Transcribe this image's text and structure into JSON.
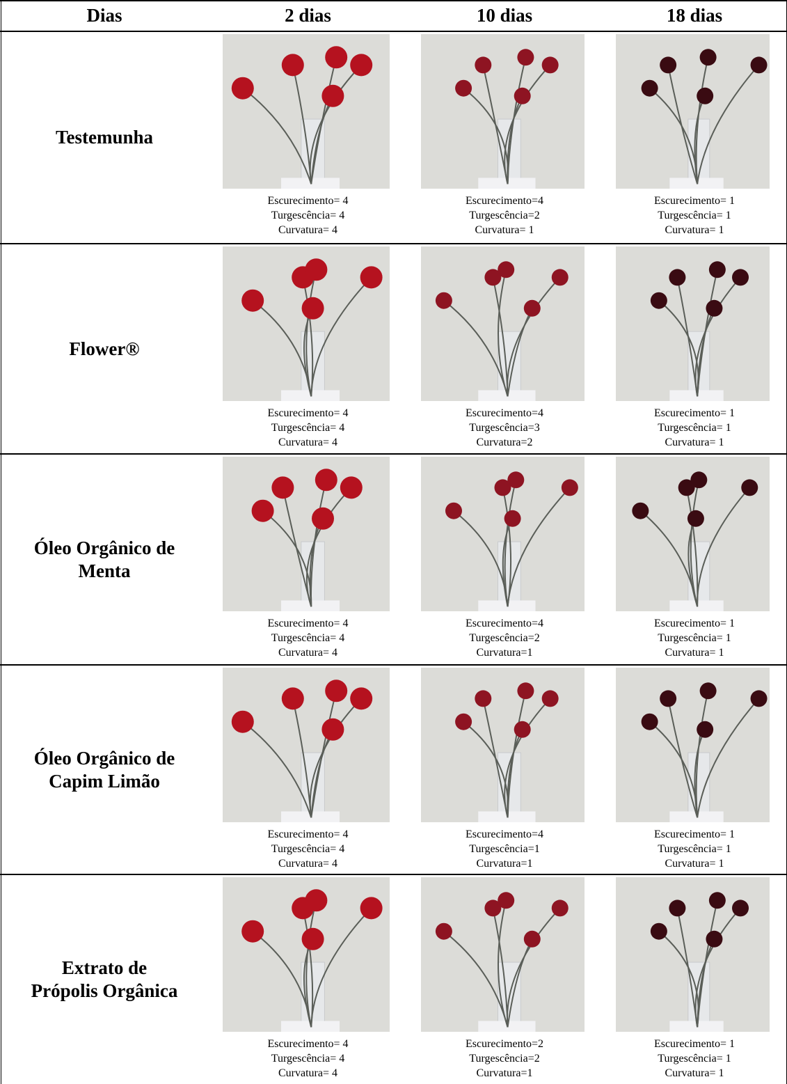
{
  "table": {
    "header": [
      "Dias",
      "2 dias",
      "10 dias",
      "18 dias"
    ],
    "rows": [
      {
        "label": [
          "Testemunha"
        ],
        "cells": [
          [
            "Escurecimento= 4",
            "Turgescência= 4",
            "Curvatura= 4"
          ],
          [
            "Escurecimento=4",
            "Turgescência=2",
            "Curvatura= 1"
          ],
          [
            "Escurecimento= 1",
            "Turgescência= 1",
            "Curvatura= 1"
          ]
        ]
      },
      {
        "label": [
          "Flower®"
        ],
        "cells": [
          [
            "Escurecimento= 4",
            "Turgescência= 4",
            "Curvatura= 4"
          ],
          [
            "Escurecimento=4",
            "Turgescência=3",
            "Curvatura=2"
          ],
          [
            "Escurecimento= 1",
            "Turgescência= 1",
            "Curvatura= 1"
          ]
        ]
      },
      {
        "label": [
          "Óleo Orgânico de",
          "Menta"
        ],
        "cells": [
          [
            "Escurecimento= 4",
            "Turgescência= 4",
            "Curvatura= 4"
          ],
          [
            "Escurecimento=4",
            "Turgescência=2",
            "Curvatura=1"
          ],
          [
            "Escurecimento= 1",
            "Turgescência= 1",
            "Curvatura= 1"
          ]
        ]
      },
      {
        "label": [
          "Óleo Orgânico de",
          "Capim Limão"
        ],
        "cells": [
          [
            "Escurecimento= 4",
            "Turgescência= 4",
            "Curvatura= 4"
          ],
          [
            "Escurecimento=4",
            "Turgescência=1",
            "Curvatura=1"
          ],
          [
            "Escurecimento= 1",
            "Turgescência= 1",
            "Curvatura= 1"
          ]
        ]
      },
      {
        "label": [
          "Extrato de",
          "Própolis Orgânica"
        ],
        "cells": [
          [
            "Escurecimento= 4",
            "Turgescência= 4",
            "Curvatura= 4"
          ],
          [
            "Escurecimento=2",
            "Turgescência=2",
            "Curvatura=1"
          ],
          [
            "Escurecimento= 1",
            "Turgescência= 1",
            "Curvatura= 1"
          ]
        ]
      }
    ]
  }
}
